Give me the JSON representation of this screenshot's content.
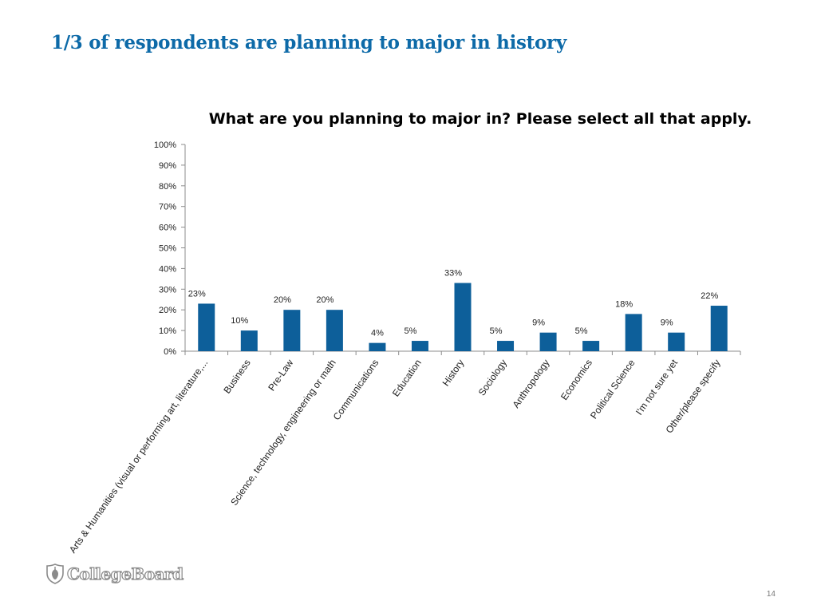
{
  "slide": {
    "title": "1/3 of respondents are planning to major in history",
    "logo_text": "CollegeBoard",
    "logo_icon": "acorn-shield-icon",
    "page_number": "14"
  },
  "chart_data": {
    "type": "bar",
    "title": "What are you planning to major in? Please select all that apply.",
    "xlabel": "",
    "ylabel": "",
    "ylim": [
      0,
      100
    ],
    "yticks": [
      "0%",
      "10%",
      "20%",
      "30%",
      "40%",
      "50%",
      "60%",
      "70%",
      "80%",
      "90%",
      "100%"
    ],
    "grid": false,
    "bar_color": "#0d5f9a",
    "categories": [
      "Arts & Humanities (visual or performing art, literature,...",
      "Business",
      "Pre-Law",
      "Science, technology, engineering or math",
      "Communications",
      "Education",
      "History",
      "Sociology",
      "Anthropology",
      "Economics",
      "Political Science",
      "I'm not sure yet",
      "Other/please specify"
    ],
    "values": [
      23,
      10,
      20,
      20,
      4,
      5,
      33,
      5,
      9,
      5,
      18,
      9,
      22
    ],
    "data_labels": [
      "23%",
      "10%",
      "20%",
      "20%",
      "4%",
      "5%",
      "33%",
      "5%",
      "9%",
      "5%",
      "18%",
      "9%",
      "22%"
    ]
  }
}
